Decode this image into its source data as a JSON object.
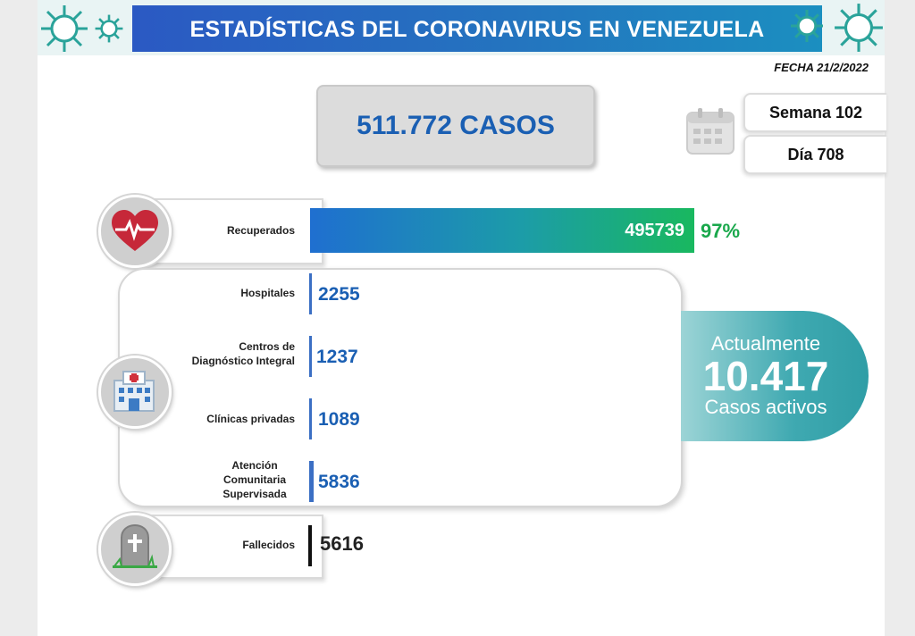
{
  "header": {
    "title": "ESTADÍSTICAS DEL CORONAVIRUS EN VENEZUELA"
  },
  "date": "FECHA 21/2/2022",
  "total": {
    "label": "511.772 CASOS"
  },
  "calendar": {
    "week": "Semana 102",
    "day": "Día 708"
  },
  "recovered": {
    "label": "Recuperados",
    "value": "495739",
    "percent": "97%"
  },
  "active_breakdown": [
    {
      "label": "Hospitales",
      "value": "2255"
    },
    {
      "label": "Centros de Diagnóstico Integral",
      "value": "1237"
    },
    {
      "label": "Clínicas privadas",
      "value": "1089"
    },
    {
      "label": "Atención Comunitaria Supervisada",
      "value": "5836"
    }
  ],
  "active": {
    "line1": "Actualmente",
    "value": "10.417",
    "line2": "Casos activos"
  },
  "deaths": {
    "label": "Fallecidos",
    "value": "5616"
  },
  "colors": {
    "header": "#2b59c3",
    "total_text": "#1a5fb3",
    "recovered_start": "#1f6fd0",
    "recovered_end": "#19b85f",
    "active_panel": "#3fa9b1"
  },
  "icons": {
    "recovered": "heart-pulse-icon",
    "active": "hospital-icon",
    "deaths": "tombstone-icon",
    "calendar": "calendar-icon",
    "decoration": "virus-icon"
  },
  "chart_data": {
    "type": "bar",
    "categories": [
      "Recuperados",
      "Hospitales",
      "Centros de Diagnóstico Integral",
      "Clínicas privadas",
      "Atención Comunitaria Supervisada",
      "Fallecidos"
    ],
    "values": [
      495739,
      2255,
      1237,
      1089,
      5836,
      5616
    ],
    "title": "ESTADÍSTICAS DEL CORONAVIRUS EN VENEZUELA"
  }
}
